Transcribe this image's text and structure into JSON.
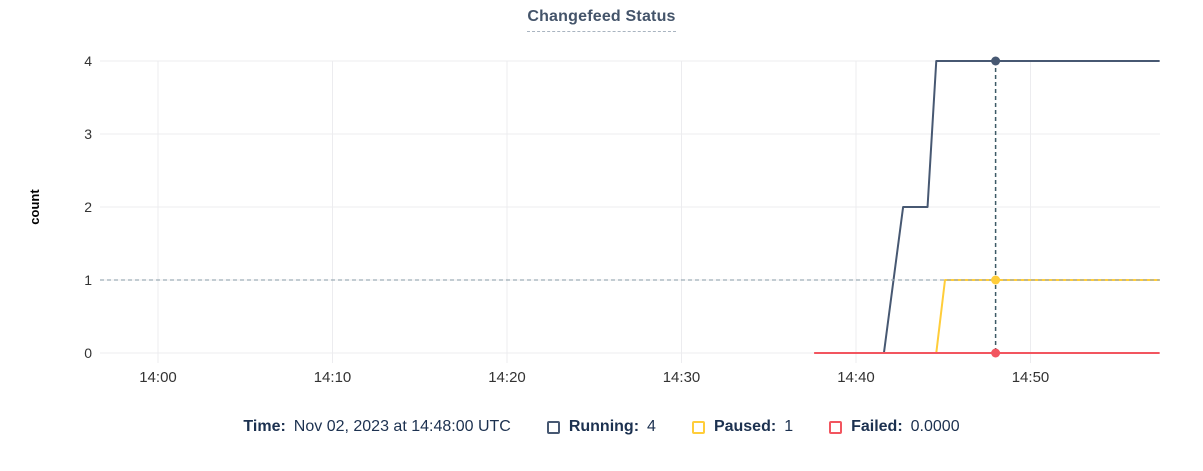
{
  "title": "Changefeed Status",
  "colors": {
    "running": "#475872",
    "paused": "#ffcd3a",
    "failed": "#f2555f",
    "gridline": "#ececef",
    "guideline": "#9dadb6",
    "hoverline": "#3d5a66",
    "axis_text": "#333333",
    "legend_text": "#1c3150",
    "title_text": "#44546a"
  },
  "chart_data": {
    "type": "line",
    "title": "Changefeed Status",
    "xlabel": "",
    "ylabel": "count",
    "ylim": [
      0,
      4
    ],
    "y_ticks": [
      0,
      1,
      2,
      3,
      4
    ],
    "x_unit": "minutes after 14:00",
    "xlim": [
      -3.3,
      57.4
    ],
    "x_ticks": [
      {
        "minute": 0,
        "label": "14:00"
      },
      {
        "minute": 10,
        "label": "14:10"
      },
      {
        "minute": 20,
        "label": "14:20"
      },
      {
        "minute": 30,
        "label": "14:30"
      },
      {
        "minute": 40,
        "label": "14:40"
      },
      {
        "minute": 50,
        "label": "14:50"
      }
    ],
    "grid": true,
    "guideline_y": 1,
    "series": [
      {
        "name": "Running",
        "color": "#475872",
        "points": [
          [
            41.6,
            0
          ],
          [
            42.7,
            2
          ],
          [
            44.1,
            2
          ],
          [
            44.6,
            4
          ],
          [
            57.4,
            4
          ]
        ]
      },
      {
        "name": "Paused",
        "color": "#ffcd3a",
        "points": [
          [
            44.6,
            0
          ],
          [
            45.1,
            1
          ],
          [
            57.4,
            1
          ]
        ]
      },
      {
        "name": "Failed",
        "color": "#f2555f",
        "points": [
          [
            37.6,
            0
          ],
          [
            57.4,
            0
          ]
        ]
      }
    ],
    "hover": {
      "minute": 48,
      "time_label": "Nov 02, 2023 at 14:48:00 UTC",
      "values": [
        {
          "name": "Running",
          "value": 4
        },
        {
          "name": "Paused",
          "value": 1
        },
        {
          "name": "Failed",
          "value": 0
        }
      ]
    },
    "legend_position": "bottom"
  },
  "legend": {
    "time_label": "Time:",
    "time_value": "Nov 02, 2023 at 14:48:00 UTC",
    "items": [
      {
        "label": "Running:",
        "value": "4",
        "color": "#475872"
      },
      {
        "label": "Paused:",
        "value": "1",
        "color": "#ffcd3a"
      },
      {
        "label": "Failed:",
        "value": "0.0000",
        "color": "#f2555f"
      }
    ]
  }
}
